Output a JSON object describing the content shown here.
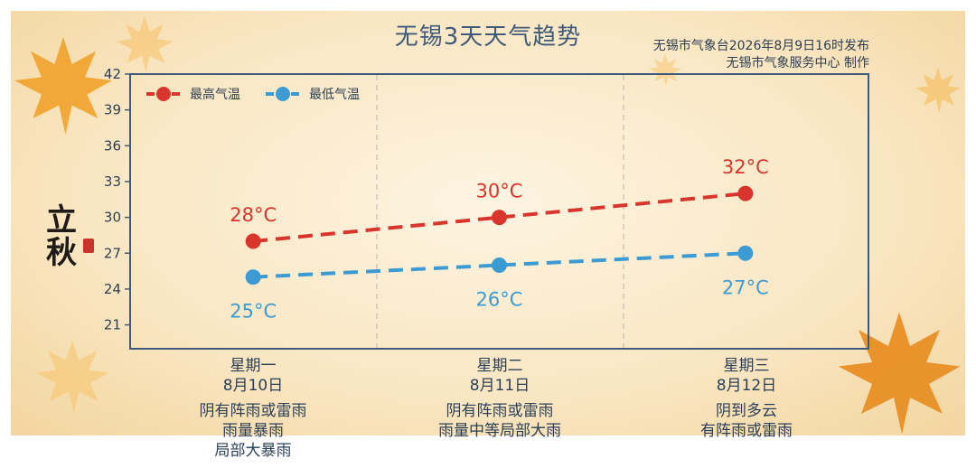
{
  "title": "无锡3天天气趋势",
  "publisher": {
    "line1": "无锡市气象台2026年8月9日16时发布",
    "line2": "无锡市气象服务中心 制作"
  },
  "decoration": {
    "calligraphy": "立秋",
    "leaf_colors": [
      "#f0a22a",
      "#f6c36a",
      "#e88b1e"
    ]
  },
  "colors": {
    "high": "#d9352c",
    "low": "#3d9bd3",
    "frame": "#3f5a78"
  },
  "days": [
    {
      "weekday": "星期一",
      "date": "8月10日",
      "weather": [
        "阴有阵雨或雷雨",
        "雨量暴雨",
        "局部大暴雨"
      ]
    },
    {
      "weekday": "星期二",
      "date": "8月11日",
      "weather": [
        "阴有阵雨或雷雨",
        "雨量中等局部大雨"
      ]
    },
    {
      "weekday": "星期三",
      "date": "8月12日",
      "weather": [
        "阴到多云",
        "有阵雨或雷雨"
      ]
    }
  ],
  "chart_data": {
    "type": "line",
    "categories": [
      "星期一",
      "星期二",
      "星期三"
    ],
    "series": [
      {
        "name": "最高气温",
        "values": [
          28,
          30,
          32
        ],
        "labels": [
          "28°C",
          "30°C",
          "32°C"
        ],
        "color": "#d9352c",
        "line_style": "dashed"
      },
      {
        "name": "最低气温",
        "values": [
          25,
          26,
          27
        ],
        "labels": [
          "25°C",
          "26°C",
          "27°C"
        ],
        "color": "#3d9bd3",
        "line_style": "dashed"
      }
    ],
    "title": "无锡3天天气趋势",
    "xlabel": "",
    "ylabel": "",
    "ylim": [
      19,
      42
    ],
    "yticks": [
      21,
      24,
      27,
      30,
      33,
      36,
      39,
      42
    ],
    "grid": "vertical dashed separators between days",
    "legend": "top-left"
  }
}
